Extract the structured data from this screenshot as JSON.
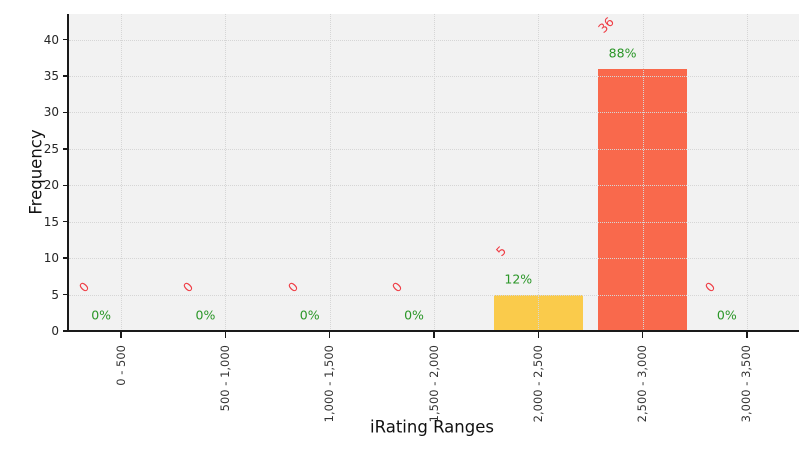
{
  "chart_data": {
    "type": "bar",
    "xlabel": "iRating Ranges",
    "ylabel": "Frequency",
    "categories": [
      "0 - 500",
      "500 - 1,000",
      "1,000 - 1,500",
      "1,500 - 2,000",
      "2,000 - 2,500",
      "2,500 - 3,000",
      "3,000 - 3,500"
    ],
    "values": [
      0,
      0,
      0,
      0,
      5,
      36,
      0
    ],
    "count_labels": [
      "0",
      "0",
      "0",
      "0",
      "5",
      "36",
      "0"
    ],
    "percent_labels": [
      "0%",
      "0%",
      "0%",
      "0%",
      "12%",
      "88%",
      "0%"
    ],
    "bar_colors": [
      null,
      null,
      null,
      null,
      "#facb4b",
      "#f9694c",
      null
    ],
    "yticks": [
      0,
      5,
      10,
      15,
      20,
      25,
      30,
      35,
      40
    ],
    "ylim": [
      0,
      43.5
    ],
    "grid": "dotted-both-axes",
    "legend": "none",
    "colors": {
      "figure_background": "#ffffff",
      "plot_background": "#f2f2f2",
      "gridline": "#d6d6d6",
      "axis_spine": "#1a1a1a",
      "count_label": "#ef3b43",
      "percent_label": "#2a9627",
      "bar_low": "#facb4b",
      "bar_high": "#f9694c"
    }
  }
}
